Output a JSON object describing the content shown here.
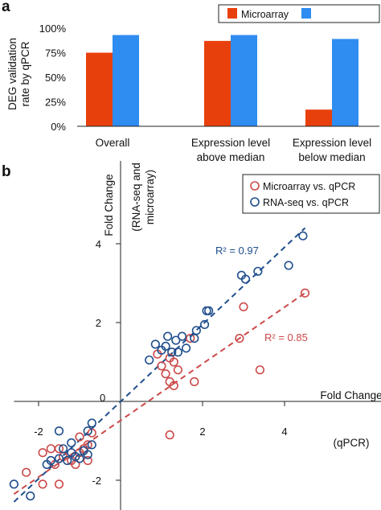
{
  "panel_a": {
    "letter": "a",
    "legend": [
      "Microarray",
      ""
    ]
  },
  "panel_b": {
    "letter": "b",
    "legend": [
      "Microarray vs. qPCR",
      "RNA-seq vs. qPCR"
    ],
    "r2": [
      "R² = 0.85",
      "R² = 0.97"
    ],
    "origin_label": "0"
  },
  "colors": {
    "microarray": "#e8400c",
    "rnaseq": "#2f8cf0",
    "microarray_point": "#cc4a4a",
    "rnaseq_point": "#1f4e8c"
  },
  "chart_data": [
    {
      "type": "bar",
      "title": "",
      "xlabel": "",
      "ylabel": "DEG validation rate by qPCR",
      "categories": [
        "Overall",
        "Expression level above median",
        "Expression level below median"
      ],
      "category_lines": [
        [
          "Overall"
        ],
        [
          "Expression level",
          "above median"
        ],
        [
          "Expression level",
          "below median"
        ]
      ],
      "series": [
        {
          "name": "Microarray",
          "values": [
            75,
            87,
            17
          ]
        },
        {
          "values": [
            93,
            93,
            89
          ]
        }
      ],
      "ylim": [
        0,
        100
      ],
      "yticks": [
        0,
        25,
        50,
        75,
        100
      ],
      "ytick_labels": [
        "0%",
        "25%",
        "50%",
        "75%",
        "100%"
      ],
      "legend_position": "top-right",
      "grid": false
    },
    {
      "type": "scatter",
      "title": "",
      "xlabel": "Fold Change (qPCR)",
      "xlabel_lines": [
        "Fold Change",
        "(qPCR)"
      ],
      "ylabel": "Fold Change (RNA-seq and microarray)",
      "ylabel_lines": [
        "Fold Change",
        "(RNA-seq and",
        "microarray)"
      ],
      "xlim": [
        -2.6,
        4.8
      ],
      "ylim": [
        -2.4,
        4.8
      ],
      "xticks": [
        -2,
        2,
        4
      ],
      "yticks": [
        -2,
        2,
        4
      ],
      "legend_position": "top-right",
      "grid": false,
      "series": [
        {
          "name": "Microarray vs. qPCR",
          "fit_r2": 0.85,
          "fit_line": {
            "x": [
              -2.6,
              4.5
            ],
            "y": [
              -2.35,
              2.75
            ]
          },
          "points": [
            [
              -2.3,
              -1.8
            ],
            [
              -1.9,
              -1.3
            ],
            [
              -1.9,
              -2.1
            ],
            [
              -1.7,
              -1.2
            ],
            [
              -1.6,
              -1.6
            ],
            [
              -1.5,
              -1.2
            ],
            [
              -1.4,
              -1.4
            ],
            [
              -1.2,
              -1.5
            ],
            [
              -1.1,
              -1.6
            ],
            [
              -1.0,
              -1.3
            ],
            [
              -1.0,
              -0.9
            ],
            [
              -0.9,
              -1.2
            ],
            [
              -0.8,
              -1.5
            ],
            [
              -0.8,
              -1.1
            ],
            [
              -0.7,
              -0.8
            ],
            [
              -1.5,
              -2.1
            ],
            [
              0.9,
              1.2
            ],
            [
              1.0,
              0.9
            ],
            [
              1.1,
              0.7
            ],
            [
              1.2,
              0.5
            ],
            [
              1.2,
              1.1
            ],
            [
              1.3,
              1.0
            ],
            [
              1.4,
              0.8
            ],
            [
              1.3,
              0.4
            ],
            [
              1.8,
              0.5
            ],
            [
              1.7,
              1.6
            ],
            [
              2.9,
              1.6
            ],
            [
              3.0,
              2.4
            ],
            [
              3.4,
              0.8
            ],
            [
              4.5,
              2.75
            ],
            [
              1.2,
              -0.85
            ]
          ]
        },
        {
          "name": "RNA-seq vs. qPCR",
          "fit_r2": 0.97,
          "fit_line": {
            "x": [
              -2.6,
              4.5
            ],
            "y": [
              -2.55,
              4.4
            ]
          },
          "points": [
            [
              -2.6,
              -2.1
            ],
            [
              -2.2,
              -2.4
            ],
            [
              -1.8,
              -1.6
            ],
            [
              -1.7,
              -1.5
            ],
            [
              -1.5,
              -1.45
            ],
            [
              -1.5,
              -0.75
            ],
            [
              -1.4,
              -1.2
            ],
            [
              -1.3,
              -1.5
            ],
            [
              -1.2,
              -1.3
            ],
            [
              -1.1,
              -1.4
            ],
            [
              -1.0,
              -1.45
            ],
            [
              -0.9,
              -1.25
            ],
            [
              -0.8,
              -1.35
            ],
            [
              -0.8,
              -0.75
            ],
            [
              -0.7,
              -1.1
            ],
            [
              -0.7,
              -0.55
            ],
            [
              -1.2,
              -1.05
            ],
            [
              0.7,
              1.05
            ],
            [
              0.85,
              1.45
            ],
            [
              1.0,
              1.3
            ],
            [
              1.1,
              1.4
            ],
            [
              1.15,
              1.65
            ],
            [
              1.25,
              1.25
            ],
            [
              1.35,
              1.55
            ],
            [
              1.4,
              1.25
            ],
            [
              1.5,
              1.65
            ],
            [
              1.8,
              1.6
            ],
            [
              1.85,
              1.8
            ],
            [
              2.05,
              1.95
            ],
            [
              2.1,
              2.3
            ],
            [
              2.15,
              2.3
            ],
            [
              2.95,
              3.2
            ],
            [
              3.05,
              3.1
            ],
            [
              3.35,
              3.3
            ],
            [
              4.1,
              3.45
            ],
            [
              4.45,
              4.2
            ],
            [
              1.6,
              1.35
            ]
          ]
        }
      ]
    }
  ]
}
